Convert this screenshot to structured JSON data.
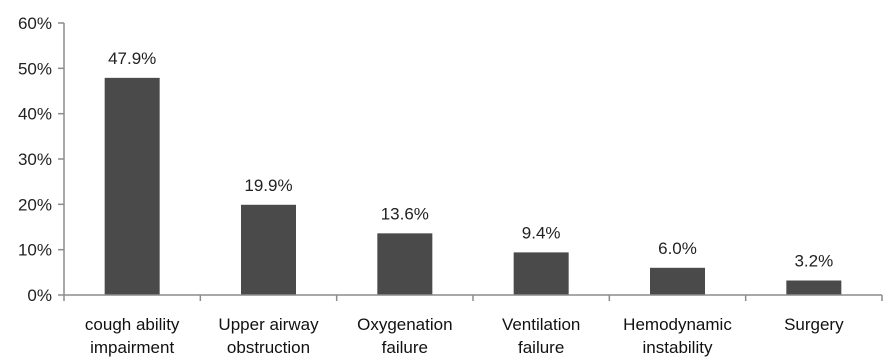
{
  "chart_data": {
    "type": "bar",
    "categories": [
      [
        "cough ability",
        "impairment"
      ],
      [
        "Upper airway",
        "obstruction"
      ],
      [
        "Oxygenation",
        "failure"
      ],
      [
        "Ventilation",
        "failure"
      ],
      [
        "Hemodynamic",
        "instability"
      ],
      [
        "Surgery"
      ]
    ],
    "values": [
      47.9,
      19.9,
      13.6,
      9.4,
      6.0,
      3.2
    ],
    "data_labels": [
      "47.9%",
      "19.9%",
      "13.6%",
      "9.4%",
      "6.0%",
      "3.2%"
    ],
    "ylim": [
      0,
      60
    ],
    "y_ticks": [
      0,
      10,
      20,
      30,
      40,
      50,
      60
    ],
    "y_tick_labels": [
      "0%",
      "10%",
      "20%",
      "30%",
      "40%",
      "50%",
      "60%"
    ],
    "title": "",
    "xlabel": "",
    "ylabel": "",
    "grid": false,
    "legend": "none",
    "bar_color": "#4a4a4a",
    "axis_color": "#8c8c8c"
  }
}
